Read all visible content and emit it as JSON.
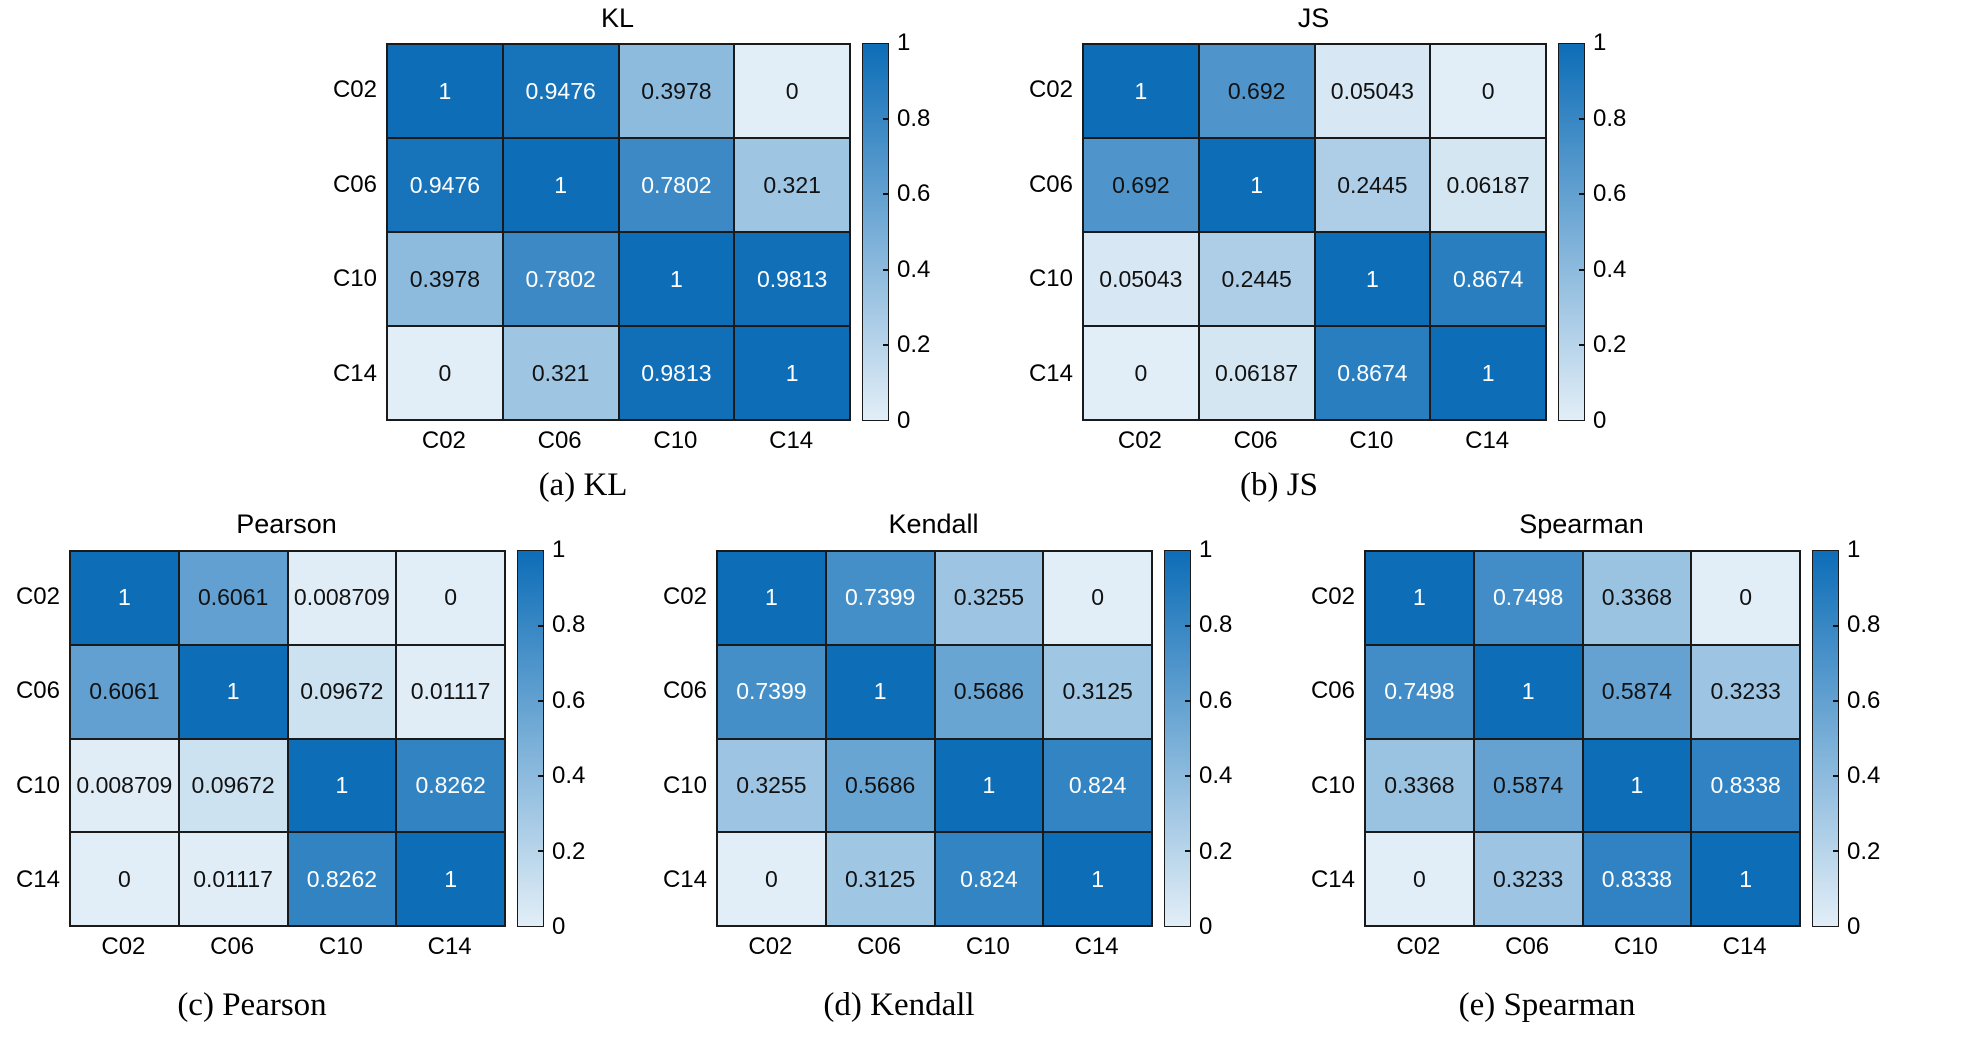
{
  "figure": {
    "colormap": {
      "low": "#E2EEF7",
      "high": "#0D6DB7",
      "white_text_threshold": 0.7
    },
    "colorbar_ticks": [
      "1",
      "0.8",
      "0.6",
      "0.4",
      "0.2",
      "0"
    ],
    "colorbar_range": [
      0,
      1
    ]
  },
  "chart_data": [
    {
      "type": "heatmap",
      "title": "KL",
      "caption": "(a) KL",
      "x_labels": [
        "C02",
        "C06",
        "C10",
        "C14"
      ],
      "y_labels": [
        "C02",
        "C06",
        "C10",
        "C14"
      ],
      "values": [
        [
          1,
          0.9476,
          0.3978,
          0
        ],
        [
          0.9476,
          1,
          0.7802,
          0.321
        ],
        [
          0.3978,
          0.7802,
          1,
          0.9813
        ],
        [
          0,
          0.321,
          0.9813,
          1
        ]
      ],
      "colorbar": {
        "min": 0,
        "max": 1,
        "ticks": [
          1,
          0.8,
          0.6,
          0.4,
          0.2,
          0
        ]
      }
    },
    {
      "type": "heatmap",
      "title": "JS",
      "caption": "(b) JS",
      "x_labels": [
        "C02",
        "C06",
        "C10",
        "C14"
      ],
      "y_labels": [
        "C02",
        "C06",
        "C10",
        "C14"
      ],
      "values": [
        [
          1,
          0.692,
          0.05043,
          0
        ],
        [
          0.692,
          1,
          0.2445,
          0.06187
        ],
        [
          0.05043,
          0.2445,
          1,
          0.8674
        ],
        [
          0,
          0.06187,
          0.8674,
          1
        ]
      ],
      "colorbar": {
        "min": 0,
        "max": 1,
        "ticks": [
          1,
          0.8,
          0.6,
          0.4,
          0.2,
          0
        ]
      }
    },
    {
      "type": "heatmap",
      "title": "Pearson",
      "caption": "(c) Pearson",
      "x_labels": [
        "C02",
        "C06",
        "C10",
        "C14"
      ],
      "y_labels": [
        "C02",
        "C06",
        "C10",
        "C14"
      ],
      "values": [
        [
          1,
          0.6061,
          0.008709,
          0
        ],
        [
          0.6061,
          1,
          0.09672,
          0.01117
        ],
        [
          0.008709,
          0.09672,
          1,
          0.8262
        ],
        [
          0,
          0.01117,
          0.8262,
          1
        ]
      ],
      "colorbar": {
        "min": 0,
        "max": 1,
        "ticks": [
          1,
          0.8,
          0.6,
          0.4,
          0.2,
          0
        ]
      }
    },
    {
      "type": "heatmap",
      "title": "Kendall",
      "caption": "(d) Kendall",
      "x_labels": [
        "C02",
        "C06",
        "C10",
        "C14"
      ],
      "y_labels": [
        "C02",
        "C06",
        "C10",
        "C14"
      ],
      "values": [
        [
          1,
          0.7399,
          0.3255,
          0
        ],
        [
          0.7399,
          1,
          0.5686,
          0.3125
        ],
        [
          0.3255,
          0.5686,
          1,
          0.824
        ],
        [
          0,
          0.3125,
          0.824,
          1
        ]
      ],
      "colorbar": {
        "min": 0,
        "max": 1,
        "ticks": [
          1,
          0.8,
          0.6,
          0.4,
          0.2,
          0
        ]
      }
    },
    {
      "type": "heatmap",
      "title": "Spearman",
      "caption": "(e) Spearman",
      "x_labels": [
        "C02",
        "C06",
        "C10",
        "C14"
      ],
      "y_labels": [
        "C02",
        "C06",
        "C10",
        "C14"
      ],
      "values": [
        [
          1,
          0.7498,
          0.3368,
          0
        ],
        [
          0.7498,
          1,
          0.5874,
          0.3233
        ],
        [
          0.3368,
          0.5874,
          1,
          0.8338
        ],
        [
          0,
          0.3233,
          0.8338,
          1
        ]
      ],
      "colorbar": {
        "min": 0,
        "max": 1,
        "ticks": [
          1,
          0.8,
          0.6,
          0.4,
          0.2,
          0
        ]
      }
    }
  ]
}
